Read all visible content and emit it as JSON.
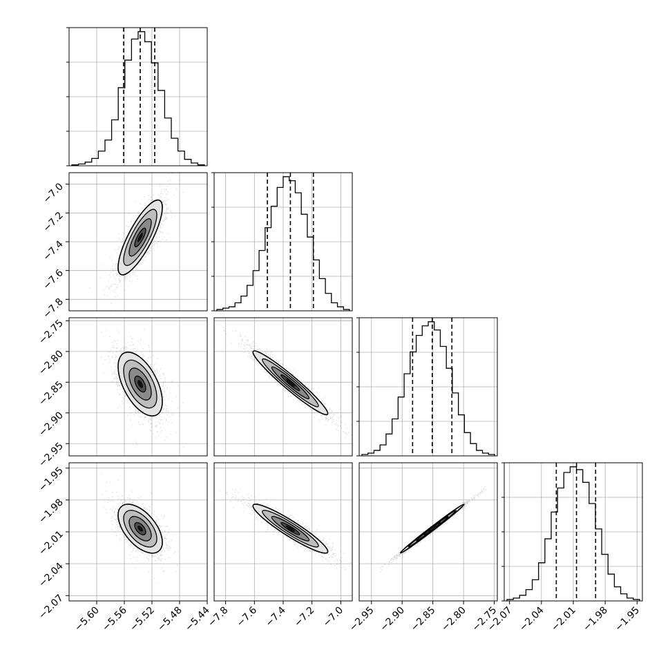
{
  "chart_data": {
    "type": "corner",
    "params": [
      {
        "index": 0,
        "range": [
          -5.64,
          -5.44
        ],
        "ticks": [
          -5.6,
          -5.56,
          -5.52,
          -5.48,
          -5.44
        ],
        "tick_labels": [
          "−5.60",
          "−5.56",
          "−5.52",
          "−5.48",
          "−5.44"
        ],
        "quantiles": [
          -5.561,
          -5.537,
          -5.516
        ],
        "hist": [
          1,
          2,
          4,
          8,
          16,
          28,
          50,
          85,
          115,
          138,
          146,
          135,
          112,
          82,
          52,
          30,
          16,
          7,
          3,
          1
        ]
      },
      {
        "index": 1,
        "range": [
          -7.88,
          -6.92
        ],
        "ticks": [
          -7.8,
          -7.6,
          -7.4,
          -7.2,
          -7.0
        ],
        "tick_labels": [
          "−7.8",
          "−7.6",
          "−7.4",
          "−7.2",
          "−7.0"
        ],
        "quantiles": [
          -7.51,
          -7.35,
          -7.19
        ],
        "hist": [
          1,
          2,
          3,
          6,
          11,
          19,
          30,
          45,
          62,
          78,
          92,
          100,
          97,
          88,
          72,
          55,
          38,
          24,
          13,
          6,
          3,
          1
        ]
      },
      {
        "index": 2,
        "range": [
          -2.97,
          -2.745
        ],
        "ticks": [
          -2.95,
          -2.9,
          -2.85,
          -2.8,
          -2.75
        ],
        "tick_labels": [
          "−2.95",
          "−2.90",
          "−2.85",
          "−2.80",
          "−2.75"
        ],
        "quantiles": [
          -2.883,
          -2.851,
          -2.819
        ],
        "hist": [
          1,
          2,
          4,
          8,
          16,
          27,
          43,
          60,
          76,
          88,
          95,
          98,
          92,
          80,
          64,
          46,
          30,
          17,
          9,
          4,
          2,
          1
        ]
      },
      {
        "index": 3,
        "range": [
          -2.075,
          -1.945
        ],
        "ticks": [
          -2.07,
          -2.04,
          -2.01,
          -1.98,
          -1.95
        ],
        "tick_labels": [
          "−2.07",
          "−2.04",
          "−2.01",
          "−1.98",
          "−1.95"
        ],
        "quantiles": [
          -2.026,
          -2.007,
          -1.989
        ],
        "hist": [
          1,
          2,
          4,
          8,
          15,
          27,
          44,
          63,
          80,
          91,
          95,
          93,
          84,
          69,
          51,
          33,
          19,
          10,
          5,
          2,
          1
        ]
      }
    ],
    "pairs": [
      {
        "x": 0,
        "y": 1,
        "center": [
          -5.537,
          -7.37
        ],
        "sigma": [
          0.016,
          0.13
        ],
        "rho": 0.8
      },
      {
        "x": 0,
        "y": 2,
        "center": [
          -5.537,
          -2.853
        ],
        "sigma": [
          0.016,
          0.026
        ],
        "rho": -0.55
      },
      {
        "x": 1,
        "y": 2,
        "center": [
          -7.35,
          -2.851
        ],
        "sigma": [
          0.13,
          0.026
        ],
        "rho": -0.96
      },
      {
        "x": 0,
        "y": 3,
        "center": [
          -5.537,
          -2.007
        ],
        "sigma": [
          0.016,
          0.0115
        ],
        "rho": -0.55
      },
      {
        "x": 1,
        "y": 3,
        "center": [
          -7.35,
          -2.007
        ],
        "sigma": [
          0.13,
          0.0115
        ],
        "rho": -0.93
      },
      {
        "x": 2,
        "y": 3,
        "center": [
          -2.851,
          -2.007
        ],
        "sigma": [
          0.026,
          0.0115
        ],
        "rho": 0.995
      }
    ],
    "contour_levels_sigma": [
      0.5,
      1.0,
      1.5,
      2.0
    ],
    "grid": true,
    "colors": {
      "line": "#000000",
      "grid": "#b0b0b0",
      "points": "#888888"
    }
  }
}
